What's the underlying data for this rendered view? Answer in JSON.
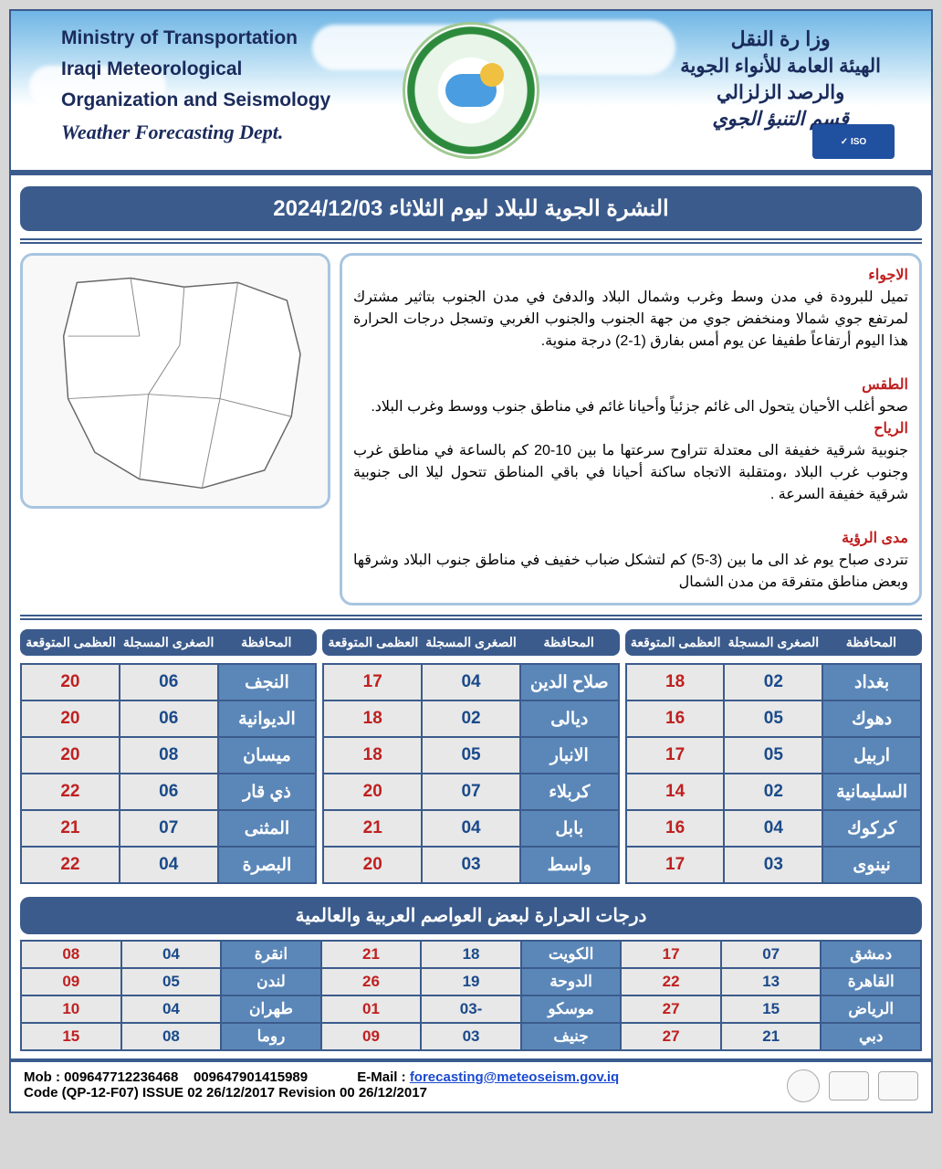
{
  "header": {
    "en": {
      "l1": "Ministry of Transportation",
      "l2": "Iraqi Meteorological",
      "l3": "Organization and Seismology",
      "l4": "Weather Forecasting Dept."
    },
    "ar": {
      "r1": "وزا رة النقل",
      "r2": "الهيئة العامة للأنواء الجوية",
      "r3": "والرصد الزلزالي",
      "r4": "قسم التنبؤ الجوي"
    },
    "iso_label": "✓ ISO"
  },
  "title_bar": "النشرة الجوية للبلاد ليوم الثلاثاء  2024/12/03",
  "synopsis": {
    "h1": "الاجواء",
    "p1": "تميل للبرودة في مدن وسط وغرب وشمال البلاد والدفئ في مدن الجنوب بتاثير مشترك لمرتفع جوي شمالا ومنخفض جوي من جهة الجنوب والجنوب الغربي وتسجل درجات الحرارة هذا اليوم أرتفاعاً طفيفا عن يوم أمس بفارق (1-2) درجة منوية.",
    "h2": "الطقس",
    "p2": "صحو أغلب الأحيان يتحول الى غائم جزئياً وأحيانا غائم في مناطق جنوب ووسط وغرب البلاد.",
    "h3": "الرياح",
    "p3": "جنوبية شرقية خفيفة الى معتدلة تتراوح سرعتها ما بين 10-20 كم بالساعة في مناطق غرب وجنوب غرب البلاد ،ومتقلبة الاتجاه ساكنة أحيانا في باقي المناطق تتحول ليلا الى جنوبية شرقية خفيفة السرعة .",
    "h4": "مدى الرؤية",
    "p4": "تتردى صباح يوم غد الى ما بين (3-5) كم لتشكل ضباب خفيف في مناطق جنوب البلاد وشرقها وبعض مناطق متفرقة من مدن الشمال"
  },
  "col_headers": {
    "gov": "المحافظة",
    "min": "الصغرى المسجلة",
    "max": "العظمى المتوقعة"
  },
  "iraq_cols": [
    [
      {
        "gov": "بغداد",
        "min": "02",
        "max": "18"
      },
      {
        "gov": "دهوك",
        "min": "05",
        "max": "16"
      },
      {
        "gov": "اربيل",
        "min": "05",
        "max": "17"
      },
      {
        "gov": "السليمانية",
        "min": "02",
        "max": "14"
      },
      {
        "gov": "كركوك",
        "min": "04",
        "max": "16"
      },
      {
        "gov": "نينوى",
        "min": "03",
        "max": "17"
      }
    ],
    [
      {
        "gov": "صلاح الدين",
        "min": "04",
        "max": "17"
      },
      {
        "gov": "ديالى",
        "min": "02",
        "max": "18"
      },
      {
        "gov": "الانبار",
        "min": "05",
        "max": "18"
      },
      {
        "gov": "كربلاء",
        "min": "07",
        "max": "20"
      },
      {
        "gov": "بابل",
        "min": "04",
        "max": "21"
      },
      {
        "gov": "واسط",
        "min": "03",
        "max": "20"
      }
    ],
    [
      {
        "gov": "النجف",
        "min": "06",
        "max": "20"
      },
      {
        "gov": "الديوانية",
        "min": "06",
        "max": "20"
      },
      {
        "gov": "ميسان",
        "min": "08",
        "max": "20"
      },
      {
        "gov": "ذي قار",
        "min": "06",
        "max": "22"
      },
      {
        "gov": "المثنى",
        "min": "07",
        "max": "21"
      },
      {
        "gov": "البصرة",
        "min": "04",
        "max": "22"
      }
    ]
  ],
  "world_title": "درجات الحرارة لبعض العواصم العربية والعالمية",
  "world_rows": [
    [
      {
        "city": "دمشق",
        "min": "07",
        "max": "17"
      },
      {
        "city": "الكويت",
        "min": "18",
        "max": "21"
      },
      {
        "city": "انقرة",
        "min": "04",
        "max": "08"
      }
    ],
    [
      {
        "city": "القاهرة",
        "min": "13",
        "max": "22"
      },
      {
        "city": "الدوحة",
        "min": "19",
        "max": "26"
      },
      {
        "city": "لندن",
        "min": "05",
        "max": "09"
      }
    ],
    [
      {
        "city": "الرياض",
        "min": "15",
        "max": "27"
      },
      {
        "city": "موسكو",
        "min": "-03",
        "max": "01"
      },
      {
        "city": "طهران",
        "min": "04",
        "max": "10"
      }
    ],
    [
      {
        "city": "دبي",
        "min": "21",
        "max": "27"
      },
      {
        "city": "جنيف",
        "min": "03",
        "max": "09"
      },
      {
        "city": "روما",
        "min": "08",
        "max": "15"
      }
    ]
  ],
  "footer": {
    "mob_label": "Mob : ",
    "mob1": "009647712236468",
    "mob2": "009647901415989",
    "email_label": "E-Mail : ",
    "email": "forecasting@meteoseism.gov.iq",
    "code_line": "Code (QP-12-F07)   ISSUE 02   26/12/2017 Revision   00   26/12/2017"
  },
  "colors": {
    "bar": "#3b5b8c",
    "gov_cell": "#5b87b8",
    "grey_cell": "#e8e8e8",
    "min_text": "#1a4a8a",
    "max_text": "#c02020",
    "header_text": "#1a2b5c"
  }
}
